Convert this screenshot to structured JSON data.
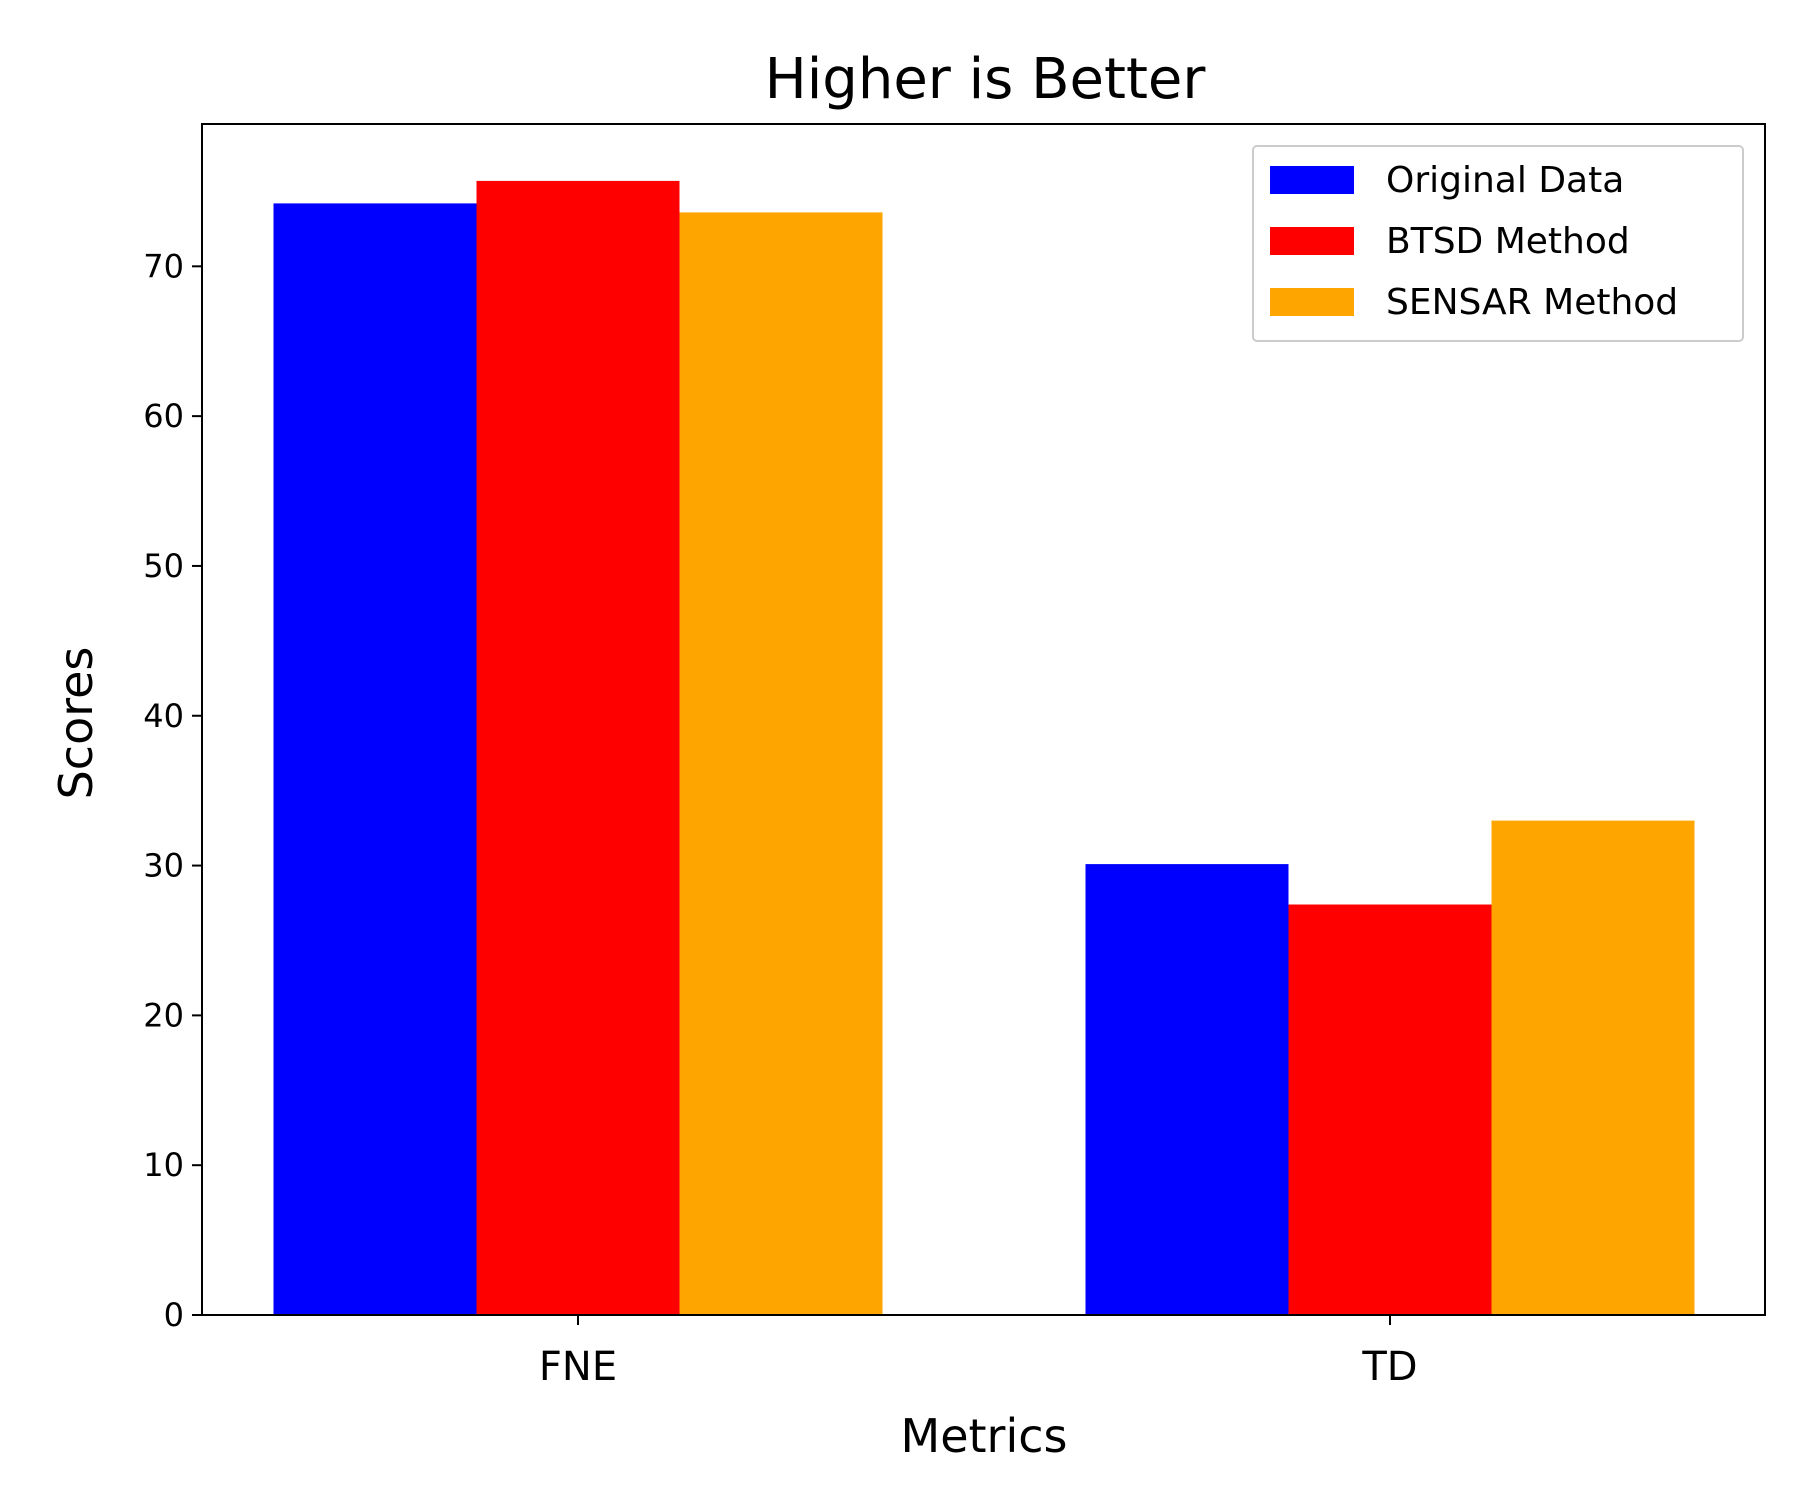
{
  "chart_data": {
    "type": "bar",
    "title": "Higher is Better",
    "xlabel": "Metrics",
    "ylabel": "Scores",
    "categories": [
      "FNE",
      "TD"
    ],
    "series": [
      {
        "name": "Original Data",
        "color": "#0000ff",
        "values": [
          74.2,
          30.1
        ]
      },
      {
        "name": "BTSD Method",
        "color": "#ff0000",
        "values": [
          75.7,
          27.4
        ]
      },
      {
        "name": "SENSAR Method",
        "color": "#ffa500",
        "values": [
          73.6,
          33.0
        ]
      }
    ],
    "ylim": [
      0,
      79.5
    ],
    "yticks": [
      0,
      10,
      20,
      30,
      40,
      50,
      60,
      70
    ],
    "ytick_labels": [
      "0",
      "10",
      "20",
      "30",
      "40",
      "50",
      "60",
      "70"
    ],
    "grid": false,
    "legend_position": "top-right"
  }
}
